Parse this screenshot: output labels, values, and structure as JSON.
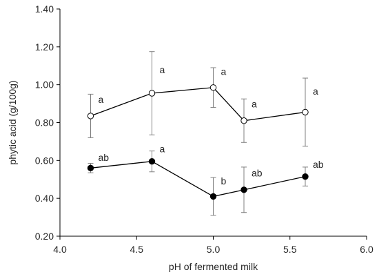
{
  "chart_data": {
    "type": "scatter",
    "xlabel": "pH of fermented milk",
    "ylabel": "phytic acid (g/100g)",
    "xlim": [
      4.0,
      6.0
    ],
    "ylim": [
      0.2,
      1.4
    ],
    "x_ticks": [
      "4.0",
      "4.5",
      "5.0",
      "5.5",
      "6.0"
    ],
    "y_ticks": [
      "0.20",
      "0.40",
      "0.60",
      "0.80",
      "1.00",
      "1.20",
      "1.40"
    ],
    "x_tick_values": [
      4.0,
      4.5,
      5.0,
      5.5,
      6.0
    ],
    "y_tick_values": [
      0.2,
      0.4,
      0.6,
      0.8,
      1.0,
      1.2,
      1.4
    ],
    "grid": false,
    "series": [
      {
        "marker": "open-circle",
        "color": "#000000",
        "points": [
          {
            "x": 4.2,
            "y": 0.835,
            "err": 0.115,
            "label": "a"
          },
          {
            "x": 4.6,
            "y": 0.955,
            "err": 0.22,
            "label": "a"
          },
          {
            "x": 5.0,
            "y": 0.985,
            "err": 0.105,
            "label": "a"
          },
          {
            "x": 5.2,
            "y": 0.81,
            "err": 0.115,
            "label": "a"
          },
          {
            "x": 5.6,
            "y": 0.855,
            "err": 0.18,
            "label": "a"
          }
        ]
      },
      {
        "marker": "filled-circle",
        "color": "#000000",
        "points": [
          {
            "x": 4.2,
            "y": 0.56,
            "err": 0.025,
            "label": "ab"
          },
          {
            "x": 4.6,
            "y": 0.595,
            "err": 0.055,
            "label": "a"
          },
          {
            "x": 5.0,
            "y": 0.41,
            "err": 0.1,
            "label": "b"
          },
          {
            "x": 5.2,
            "y": 0.445,
            "err": 0.12,
            "label": "ab"
          },
          {
            "x": 5.6,
            "y": 0.515,
            "err": 0.05,
            "label": "ab"
          }
        ]
      }
    ]
  }
}
